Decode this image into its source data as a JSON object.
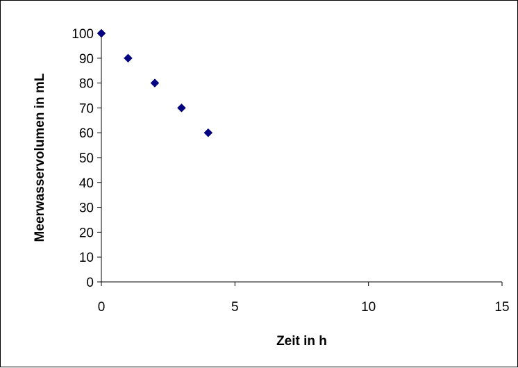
{
  "chart_data": {
    "type": "scatter",
    "title": "",
    "xlabel": "Zeit in h",
    "ylabel": "Meerwasservolumen in mL",
    "xlim": [
      0,
      15
    ],
    "ylim": [
      0,
      100
    ],
    "x_ticks": [
      0,
      5,
      10,
      15
    ],
    "y_ticks": [
      0,
      10,
      20,
      30,
      40,
      50,
      60,
      70,
      80,
      90,
      100
    ],
    "grid": false,
    "legend": "none",
    "marker": "diamond",
    "series": [
      {
        "x": [
          0,
          1,
          2,
          3,
          4
        ],
        "y": [
          100,
          90,
          80,
          70,
          60
        ],
        "color": "#000080"
      }
    ]
  }
}
